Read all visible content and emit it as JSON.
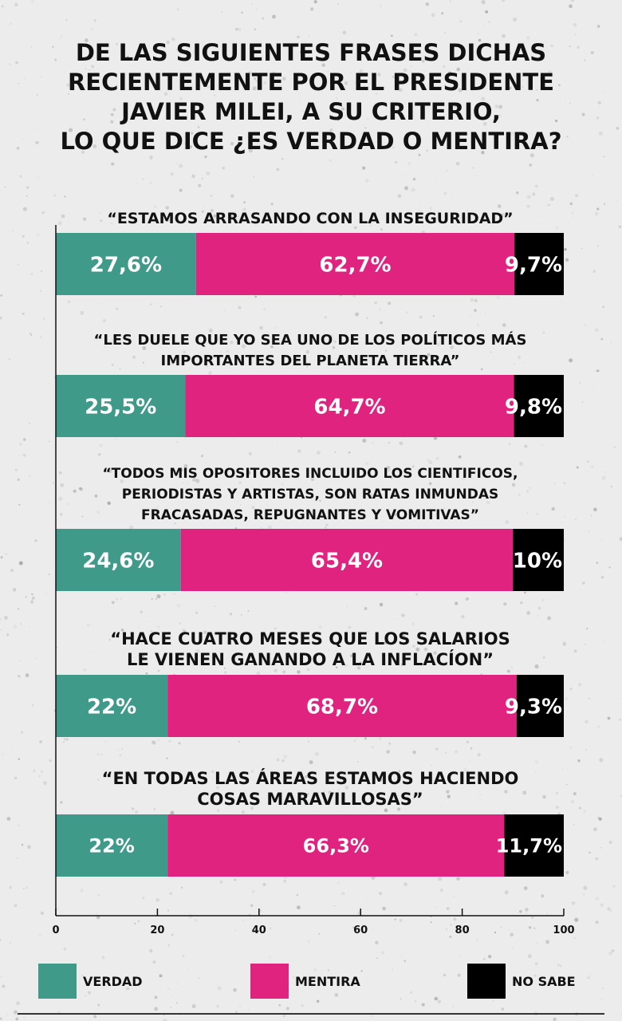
{
  "title_lines": [
    "DE LAS SIGUIENTES FRASES DICHAS",
    "RECIENTEMENTE POR EL PRESIDENTE",
    "JAVIER MILEI, A SU CRITERIO,",
    "LO QUE DICE ¿ES VERDAD O MENTIRA?"
  ],
  "chart_data": {
    "type": "bar",
    "orientation": "horizontal",
    "stacked": true,
    "xlim": [
      0,
      100
    ],
    "x_ticks": [
      "0",
      "20",
      "40",
      "60",
      "80",
      "100"
    ],
    "grid": false,
    "legend_position": "bottom",
    "categories": [
      [
        "“ESTAMOS ARRASANDO CON LA INSEGURIDAD”"
      ],
      [
        "“LES DUELE QUE YO SEA UNO DE LOS POLÍTICOS MÁS",
        "IMPORTANTES DEL PLANETA TIERRA”"
      ],
      [
        "“TODOS MIS OPOSITORES INCLUIDO LOS CIENTIFICOS,",
        "PERIODISTAS Y ARTISTAS, SON RATAS INMUNDAS",
        "FRACASADAS, REPUGNANTES Y VOMITIVAS”"
      ],
      [
        "“HACE CUATRO MESES QUE LOS SALARIOS",
        "LE VIENEN GANANDO A LA INFLACÍON”"
      ],
      [
        "“EN TODAS LAS ÁREAS ESTAMOS HACIENDO",
        "COSAS MARAVILLOSAS”"
      ]
    ],
    "series": [
      {
        "name": "VERDAD",
        "color": "#3f9a8a",
        "values": [
          27.6,
          25.5,
          24.6,
          22,
          22
        ],
        "labels": [
          "27,6%",
          "25,5%",
          "24,6%",
          "22%",
          "22%"
        ]
      },
      {
        "name": "MENTIRA",
        "color": "#e0237f",
        "values": [
          62.7,
          64.7,
          65.4,
          68.7,
          66.3
        ],
        "labels": [
          "62,7%",
          "64,7%",
          "65,4%",
          "68,7%",
          "66,3%"
        ]
      },
      {
        "name": "NO SABE",
        "color": "#000000",
        "values": [
          9.7,
          9.8,
          10,
          9.3,
          11.7
        ],
        "labels": [
          "9,7%",
          "9,8%",
          "10%",
          "9,3%",
          "11,7%"
        ]
      }
    ]
  }
}
